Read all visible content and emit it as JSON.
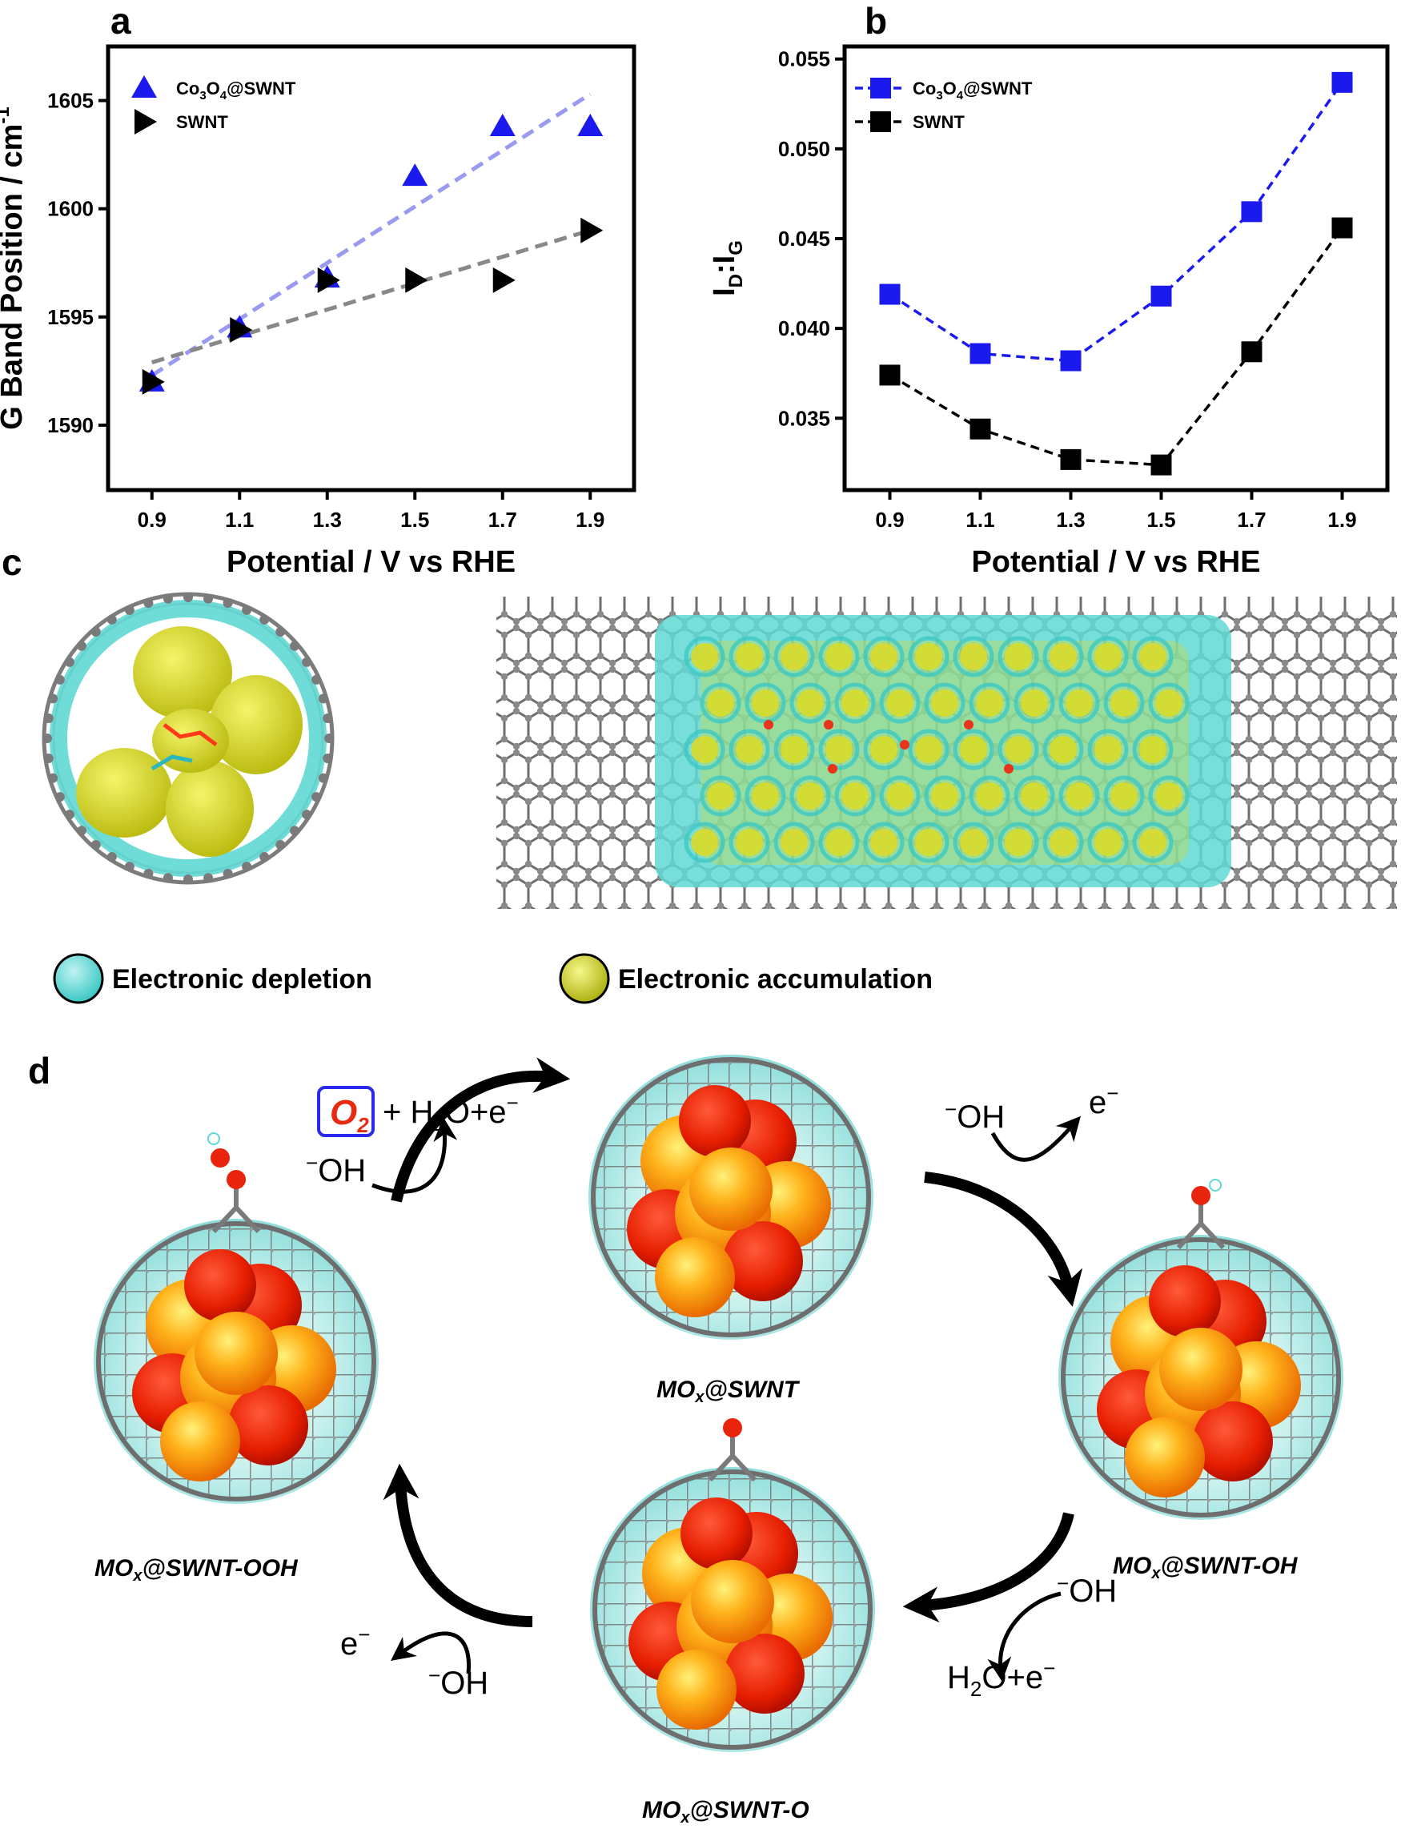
{
  "panels": {
    "a": "a",
    "b": "b",
    "c": "c",
    "d": "d"
  },
  "chart_data": [
    {
      "type": "scatter",
      "panel": "a",
      "xlabel": "Potential / V vs RHE",
      "ylabel_main": "G Band Position / cm",
      "ylabel_sup": "-1",
      "xlim": [
        0.8,
        2.0
      ],
      "ylim": [
        1587,
        1607.5
      ],
      "xticks": [
        "0.9",
        "1.1",
        "1.3",
        "1.5",
        "1.7",
        "1.9"
      ],
      "yticks": [
        "1590",
        "1595",
        "1600",
        "1605"
      ],
      "legend_position": "top-left",
      "series": [
        {
          "name_parts": [
            "Co",
            "3",
            "O",
            "4",
            "@SWNT"
          ],
          "marker": "triangle-up",
          "color": "#1a1aee",
          "x": [
            0.9,
            1.1,
            1.3,
            1.5,
            1.7,
            1.9
          ],
          "y": [
            1592.0,
            1594.5,
            1596.8,
            1601.5,
            1603.8,
            1603.8
          ],
          "fit": {
            "x": [
              0.9,
              1.9
            ],
            "y": [
              1592.3,
              1605.3
            ],
            "color": "#9a9af0"
          }
        },
        {
          "name": "SWNT",
          "marker": "triangle-right",
          "color": "#000000",
          "x": [
            0.9,
            1.1,
            1.3,
            1.5,
            1.7,
            1.9
          ],
          "y": [
            1592.0,
            1594.4,
            1596.7,
            1596.7,
            1596.7,
            1599.0
          ],
          "fit": {
            "x": [
              0.9,
              1.9
            ],
            "y": [
              1592.9,
              1599.0
            ],
            "color": "#888888"
          }
        }
      ]
    },
    {
      "type": "line",
      "panel": "b",
      "xlabel": "Potential / V vs RHE",
      "ylabel_parts": [
        "I",
        "D",
        ":I",
        "G"
      ],
      "xlim": [
        0.8,
        2.0
      ],
      "ylim": [
        0.031,
        0.0557
      ],
      "xticks": [
        "0.9",
        "1.1",
        "1.3",
        "1.5",
        "1.7",
        "1.9"
      ],
      "yticks": [
        "0.035",
        "0.040",
        "0.045",
        "0.050",
        "0.055"
      ],
      "legend_position": "top-left",
      "series": [
        {
          "name_parts": [
            "Co",
            "3",
            "O",
            "4",
            "@SWNT"
          ],
          "marker": "square",
          "color": "#1a1aee",
          "line_color": "#1a1aee",
          "x": [
            0.9,
            1.1,
            1.3,
            1.5,
            1.7,
            1.9
          ],
          "y": [
            0.0419,
            0.0386,
            0.0382,
            0.0418,
            0.0465,
            0.0537
          ]
        },
        {
          "name": "SWNT",
          "marker": "square",
          "color": "#000000",
          "line_color": "#000000",
          "x": [
            0.9,
            1.1,
            1.3,
            1.5,
            1.7,
            1.9
          ],
          "y": [
            0.0374,
            0.0344,
            0.0327,
            0.0324,
            0.0387,
            0.0456
          ]
        }
      ]
    }
  ],
  "panel_c": {
    "legend": [
      {
        "label": "Electronic depletion",
        "color": "#5fd8d4"
      },
      {
        "label": "Electronic accumulation",
        "color": "#d8dc2a"
      }
    ]
  },
  "panel_d": {
    "states": [
      {
        "label_prefix": "MO",
        "label_sub": "x",
        "label_suffix": "@SWNT"
      },
      {
        "label_prefix": "MO",
        "label_sub": "x",
        "label_suffix": "@SWNT-OH"
      },
      {
        "label_prefix": "MO",
        "label_sub": "x",
        "label_suffix": "@SWNT-O"
      },
      {
        "label_prefix": "MO",
        "label_sub": "x",
        "label_suffix": "@SWNT-OOH"
      }
    ],
    "o2_label": "O",
    "o2_sub": "2",
    "products_top_left": {
      "plus": "+ H",
      "sub": "2",
      "rest": "O+e"
    },
    "oh_minus": "OH",
    "electron": "e",
    "h2o_e": {
      "h": "H",
      "sub": "2",
      "rest": "O+e"
    },
    "minus": "−"
  }
}
